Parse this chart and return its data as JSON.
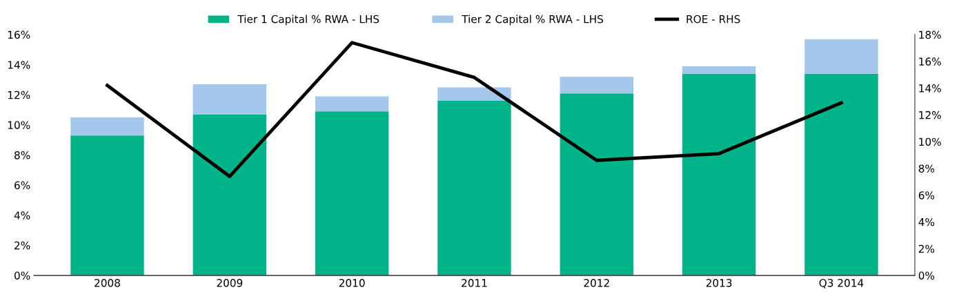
{
  "chart_data": {
    "type": "bar",
    "stacked": true,
    "categories": [
      "2008",
      "2009",
      "2010",
      "2011",
      "2012",
      "2013",
      "Q3 2014"
    ],
    "series": [
      {
        "name": "Tier 1 Capital % RWA - LHS",
        "color": "#00b388",
        "values": [
          9.3,
          10.7,
          10.9,
          11.6,
          12.1,
          13.4,
          13.4
        ]
      },
      {
        "name": "Tier 2 Capital % RWA - LHS",
        "color": "#a3c8ec",
        "values": [
          1.2,
          2.0,
          1.0,
          0.9,
          1.1,
          0.5,
          2.3
        ]
      },
      {
        "name": "ROE - RHS",
        "type": "line",
        "axis": "y2",
        "color": "#000000",
        "values": [
          14.2,
          7.4,
          17.4,
          14.8,
          8.6,
          9.1,
          12.9
        ]
      }
    ],
    "ylim": [
      0,
      16
    ],
    "yticks": [
      {
        "value": 0,
        "label": "0%"
      },
      {
        "value": 2,
        "label": "2%"
      },
      {
        "value": 4,
        "label": "4%"
      },
      {
        "value": 6,
        "label": "6%"
      },
      {
        "value": 8,
        "label": "8%"
      },
      {
        "value": 10,
        "label": "10%"
      },
      {
        "value": 12,
        "label": "12%"
      },
      {
        "value": 14,
        "label": "14%"
      },
      {
        "value": 16,
        "label": "16%"
      }
    ],
    "y2lim": [
      0,
      18
    ],
    "y2ticks": [
      {
        "value": 0,
        "label": "0%"
      },
      {
        "value": 2,
        "label": "2%"
      },
      {
        "value": 4,
        "label": "4%"
      },
      {
        "value": 6,
        "label": "6%"
      },
      {
        "value": 8,
        "label": "8%"
      },
      {
        "value": 10,
        "label": "10%"
      },
      {
        "value": 12,
        "label": "12%"
      },
      {
        "value": 14,
        "label": "14%"
      },
      {
        "value": 16,
        "label": "16%"
      },
      {
        "value": 18,
        "label": "18%"
      }
    ],
    "grid": false,
    "legend": "top",
    "marker": "none",
    "line_style": "solid"
  }
}
